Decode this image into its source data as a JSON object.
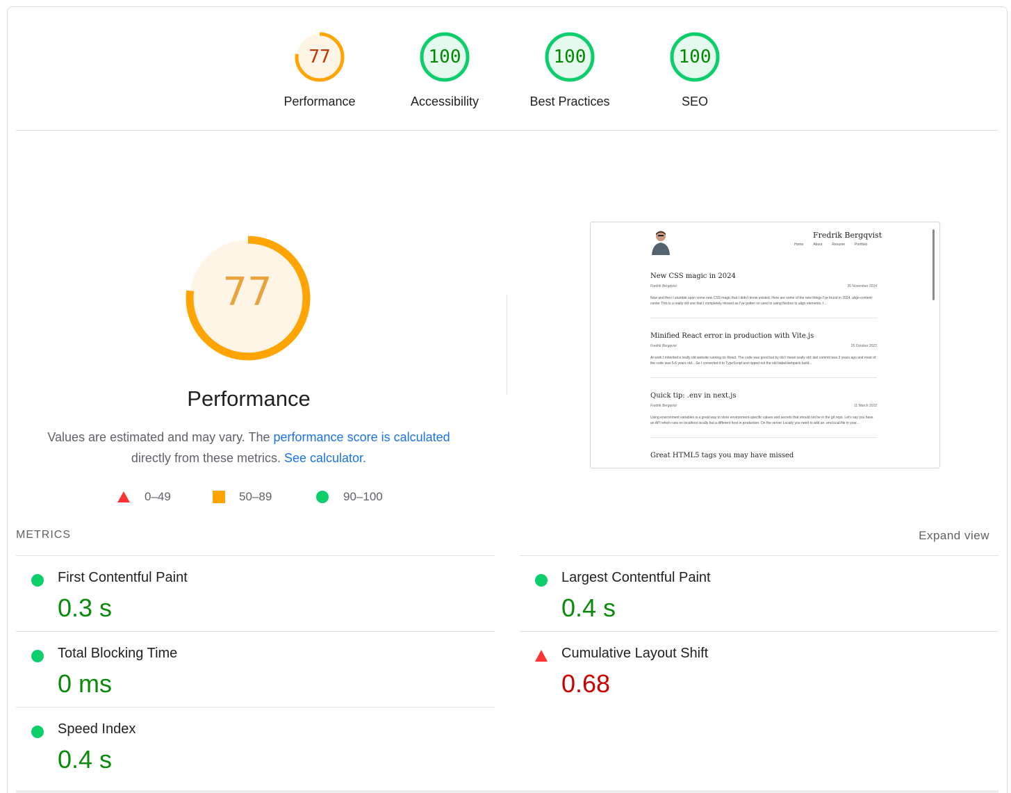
{
  "categories": [
    {
      "label": "Performance",
      "score": 77,
      "level": "average"
    },
    {
      "label": "Accessibility",
      "score": 100,
      "level": "pass"
    },
    {
      "label": "Best Practices",
      "score": 100,
      "level": "pass"
    },
    {
      "label": "SEO",
      "score": 100,
      "level": "pass"
    }
  ],
  "main": {
    "score": 77,
    "title": "Performance",
    "desc_before": "Values are estimated and may vary. The ",
    "desc_link1": "performance score is calculated",
    "desc_mid": " directly from these metrics. ",
    "desc_link2": "See calculator."
  },
  "legend": {
    "fail": "0–49",
    "average": "50–89",
    "pass": "90–100"
  },
  "thumbnail": {
    "site_name": "Fredrik Bergqvist",
    "nav": [
      "Home",
      "About",
      "Resume",
      "Portfolio"
    ],
    "posts": [
      {
        "title": "New CSS magic in 2024",
        "author": "Fredrik Bergqvist",
        "date": "26 November 2024",
        "excerpt": "Now and then I stumble upon some new CSS magic that I didn't know existed. Here are some of the new things I've found in 2024. align-content: center This is a really old one that I completely missed as I've gotten so used to using flexbox to align elements. I..."
      },
      {
        "title": "Minified React error in production with Vite.js",
        "author": "Fredrik Bergqvist",
        "date": "25 October 2022",
        "excerpt": "At work I inherited a really old website running on React. The code was good but by old I mean really old; last commit was 3 years ago and most of the code was 5-6 years old... So I converted it to TypeScript and ripped out the old babel/webpack build..."
      },
      {
        "title": "Quick tip: .env in next.js",
        "author": "Fredrik Bergqvist",
        "date": "11 March 2022",
        "excerpt": "Using environment variables is a great way to store environment-specific values and secrets that should not be in the git repo. Let's say you have an API which runs on localhost locally but a different host in production. On the server Locally you need to add an .env.local-file in your..."
      },
      {
        "title": "Great HTML5 tags you may have missed"
      }
    ]
  },
  "metrics": {
    "heading": "METRICS",
    "expand": "Expand view",
    "items": [
      {
        "name": "First Contentful Paint",
        "value": "0.3 s",
        "status": "pass"
      },
      {
        "name": "Largest Contentful Paint",
        "value": "0.4 s",
        "status": "pass"
      },
      {
        "name": "Total Blocking Time",
        "value": "0 ms",
        "status": "pass"
      },
      {
        "name": "Cumulative Layout Shift",
        "value": "0.68",
        "status": "fail"
      },
      {
        "name": "Speed Index",
        "value": "0.4 s",
        "status": "pass"
      }
    ]
  },
  "colors": {
    "pass": "#0cce6b",
    "pass_text": "#008800",
    "average": "#ffa400",
    "average_text": "#c33300",
    "fail": "#ff3333",
    "fail_text": "#cc0000"
  }
}
